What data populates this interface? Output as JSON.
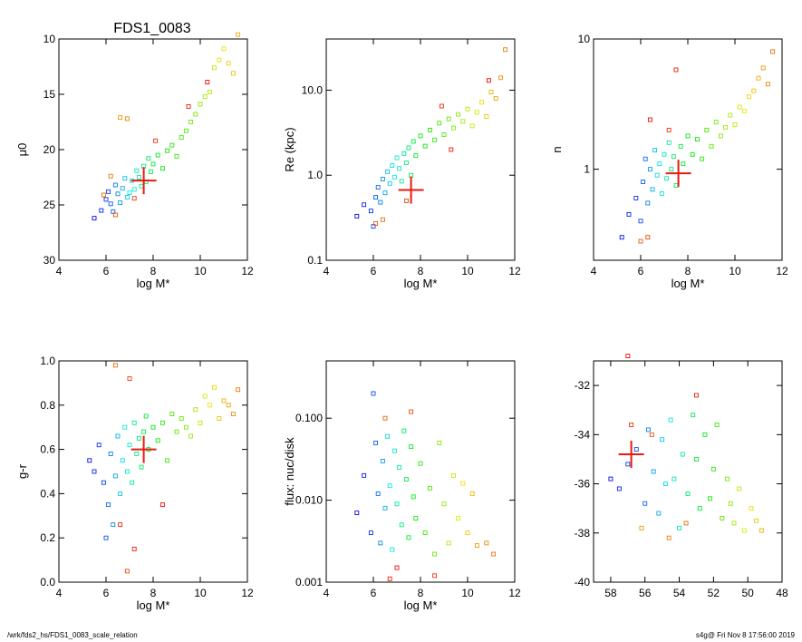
{
  "footer": {
    "left": "/wrk/fds2_hs/FDS1_0083_scale_relation",
    "right": "s4g@  Fri Nov  8 17:56:00 2019"
  },
  "colors": {
    "axis": "#000000",
    "marker_cross": "#e8190f"
  },
  "chart_data": [
    {
      "type": "scatter",
      "title": "FDS1_0083",
      "xlabel": "log M*",
      "ylabel": "μ0",
      "xlim": [
        4,
        12
      ],
      "ylim": [
        30,
        10
      ],
      "xticks": [
        4,
        6,
        8,
        10,
        12
      ],
      "yticks": [
        10,
        15,
        20,
        25,
        30
      ],
      "cross": {
        "x": 7.6,
        "y": 22.8
      },
      "points": [
        [
          5.5,
          26.2
        ],
        [
          5.8,
          25.5
        ],
        [
          6.0,
          24.5
        ],
        [
          6.1,
          23.8
        ],
        [
          6.2,
          24.9
        ],
        [
          6.3,
          25.6
        ],
        [
          6.4,
          23.2
        ],
        [
          6.5,
          24.0
        ],
        [
          6.6,
          24.8
        ],
        [
          6.7,
          23.5
        ],
        [
          6.8,
          22.6
        ],
        [
          6.9,
          24.3
        ],
        [
          7.0,
          23.9
        ],
        [
          7.1,
          22.8
        ],
        [
          7.2,
          23.6
        ],
        [
          7.3,
          21.9
        ],
        [
          7.4,
          22.5
        ],
        [
          7.5,
          23.3
        ],
        [
          7.6,
          21.5
        ],
        [
          7.7,
          22.9
        ],
        [
          7.8,
          20.8
        ],
        [
          7.9,
          22.0
        ],
        [
          8.0,
          21.3
        ],
        [
          8.2,
          20.5
        ],
        [
          8.4,
          21.7
        ],
        [
          8.6,
          20.1
        ],
        [
          8.8,
          19.6
        ],
        [
          9.0,
          20.6
        ],
        [
          9.2,
          18.9
        ],
        [
          9.4,
          18.3
        ],
        [
          9.6,
          17.5
        ],
        [
          9.8,
          16.8
        ],
        [
          10.0,
          15.9
        ],
        [
          10.2,
          15.2
        ],
        [
          10.4,
          14.8
        ],
        [
          10.6,
          12.6
        ],
        [
          10.8,
          11.9
        ],
        [
          11.0,
          10.9
        ],
        [
          11.2,
          12.2
        ],
        [
          11.4,
          13.1
        ],
        [
          11.6,
          9.6
        ],
        [
          6.6,
          17.1
        ],
        [
          6.9,
          17.2
        ],
        [
          6.2,
          22.4
        ],
        [
          5.9,
          24.1
        ],
        [
          6.4,
          25.9
        ],
        [
          7.2,
          24.4
        ],
        [
          8.1,
          19.2
        ],
        [
          9.5,
          16.1
        ],
        [
          10.3,
          13.9
        ]
      ]
    },
    {
      "type": "scatter",
      "xlabel": "log M*",
      "ylabel": "Re (kpc)",
      "scale_y": "log",
      "xlim": [
        4,
        12
      ],
      "ylim": [
        0.1,
        40
      ],
      "xticks": [
        4,
        6,
        8,
        10,
        12
      ],
      "ytick_labels": [
        "0.1",
        "1.0",
        "10.0"
      ],
      "cross": {
        "x": 7.6,
        "y": 0.67
      },
      "points": [
        [
          5.3,
          0.33
        ],
        [
          5.6,
          0.45
        ],
        [
          5.9,
          0.38
        ],
        [
          6.0,
          0.25
        ],
        [
          6.1,
          0.55
        ],
        [
          6.2,
          0.72
        ],
        [
          6.3,
          0.48
        ],
        [
          6.4,
          0.9
        ],
        [
          6.5,
          0.62
        ],
        [
          6.6,
          1.1
        ],
        [
          6.7,
          0.8
        ],
        [
          6.8,
          1.3
        ],
        [
          6.9,
          0.95
        ],
        [
          7.0,
          1.6
        ],
        [
          7.1,
          1.2
        ],
        [
          7.2,
          0.85
        ],
        [
          7.3,
          1.8
        ],
        [
          7.4,
          1.4
        ],
        [
          7.5,
          2.1
        ],
        [
          7.6,
          1.0
        ],
        [
          7.7,
          2.5
        ],
        [
          7.8,
          1.7
        ],
        [
          8.0,
          2.9
        ],
        [
          8.2,
          2.2
        ],
        [
          8.4,
          3.4
        ],
        [
          8.6,
          2.6
        ],
        [
          8.8,
          4.1
        ],
        [
          9.0,
          3.0
        ],
        [
          9.2,
          4.6
        ],
        [
          9.4,
          3.6
        ],
        [
          9.6,
          5.2
        ],
        [
          9.8,
          4.3
        ],
        [
          10.0,
          6.0
        ],
        [
          10.2,
          3.8
        ],
        [
          10.4,
          5.5
        ],
        [
          10.6,
          7.2
        ],
        [
          10.8,
          4.9
        ],
        [
          11.0,
          9.5
        ],
        [
          11.2,
          8.0
        ],
        [
          11.4,
          14.0
        ],
        [
          11.6,
          30.0
        ],
        [
          6.4,
          0.3
        ],
        [
          6.1,
          0.27
        ],
        [
          7.4,
          0.5
        ],
        [
          8.9,
          6.5
        ],
        [
          9.3,
          2.0
        ],
        [
          10.9,
          13.0
        ]
      ]
    },
    {
      "type": "scatter",
      "xlabel": "log M*",
      "ylabel": "n",
      "scale_y": "log",
      "xlim": [
        4,
        12
      ],
      "ylim": [
        0.2,
        10
      ],
      "xticks": [
        4,
        6,
        8,
        10,
        12
      ],
      "ytick_labels": [
        "1",
        "10"
      ],
      "cross": {
        "x": 7.6,
        "y": 0.93
      },
      "points": [
        [
          5.2,
          0.3
        ],
        [
          5.5,
          0.45
        ],
        [
          5.8,
          0.6
        ],
        [
          6.0,
          0.4
        ],
        [
          6.1,
          0.8
        ],
        [
          6.2,
          1.2
        ],
        [
          6.3,
          0.55
        ],
        [
          6.4,
          1.0
        ],
        [
          6.5,
          0.7
        ],
        [
          6.6,
          1.4
        ],
        [
          6.7,
          0.9
        ],
        [
          6.8,
          1.1
        ],
        [
          6.9,
          0.65
        ],
        [
          7.0,
          1.3
        ],
        [
          7.1,
          0.85
        ],
        [
          7.2,
          1.6
        ],
        [
          7.3,
          1.0
        ],
        [
          7.4,
          1.25
        ],
        [
          7.5,
          0.75
        ],
        [
          7.7,
          1.5
        ],
        [
          7.8,
          1.1
        ],
        [
          8.0,
          1.8
        ],
        [
          8.2,
          1.3
        ],
        [
          8.4,
          1.7
        ],
        [
          8.6,
          1.2
        ],
        [
          8.8,
          2.0
        ],
        [
          9.0,
          1.5
        ],
        [
          9.2,
          2.3
        ],
        [
          9.4,
          1.8
        ],
        [
          9.6,
          2.1
        ],
        [
          9.8,
          2.6
        ],
        [
          10.0,
          2.2
        ],
        [
          10.2,
          3.0
        ],
        [
          10.4,
          2.8
        ],
        [
          10.6,
          3.6
        ],
        [
          10.8,
          4.0
        ],
        [
          11.0,
          5.0
        ],
        [
          11.2,
          6.0
        ],
        [
          11.4,
          4.5
        ],
        [
          11.6,
          8.0
        ],
        [
          6.0,
          0.28
        ],
        [
          6.3,
          0.3
        ],
        [
          7.2,
          2.0
        ],
        [
          7.5,
          5.8
        ],
        [
          6.4,
          2.4
        ]
      ]
    },
    {
      "type": "scatter",
      "xlabel": "log M*",
      "ylabel": "g-r",
      "xlim": [
        4,
        12
      ],
      "ylim": [
        0.0,
        1.0
      ],
      "xticks": [
        4,
        6,
        8,
        10,
        12
      ],
      "yticks": [
        0.0,
        0.2,
        0.4,
        0.6,
        0.8,
        1.0
      ],
      "ytick_labels": [
        "0.0",
        "0.2",
        "0.4",
        "0.6",
        "0.8",
        "1.0"
      ],
      "cross": {
        "x": 7.6,
        "y": 0.6
      },
      "points": [
        [
          5.3,
          0.55
        ],
        [
          5.5,
          0.5
        ],
        [
          5.7,
          0.62
        ],
        [
          5.9,
          0.45
        ],
        [
          6.0,
          0.2
        ],
        [
          6.1,
          0.35
        ],
        [
          6.2,
          0.58
        ],
        [
          6.3,
          0.26
        ],
        [
          6.4,
          0.48
        ],
        [
          6.5,
          0.66
        ],
        [
          6.6,
          0.4
        ],
        [
          6.7,
          0.55
        ],
        [
          6.8,
          0.7
        ],
        [
          6.9,
          0.5
        ],
        [
          7.0,
          0.62
        ],
        [
          7.1,
          0.45
        ],
        [
          7.2,
          0.72
        ],
        [
          7.3,
          0.58
        ],
        [
          7.4,
          0.65
        ],
        [
          7.5,
          0.52
        ],
        [
          7.6,
          0.68
        ],
        [
          7.7,
          0.75
        ],
        [
          7.8,
          0.6
        ],
        [
          8.0,
          0.7
        ],
        [
          8.2,
          0.64
        ],
        [
          8.4,
          0.72
        ],
        [
          8.6,
          0.55
        ],
        [
          8.8,
          0.76
        ],
        [
          9.0,
          0.68
        ],
        [
          9.2,
          0.74
        ],
        [
          9.4,
          0.7
        ],
        [
          9.6,
          0.66
        ],
        [
          9.8,
          0.78
        ],
        [
          10.0,
          0.72
        ],
        [
          10.2,
          0.84
        ],
        [
          10.4,
          0.8
        ],
        [
          10.6,
          0.88
        ],
        [
          10.8,
          0.74
        ],
        [
          11.0,
          0.82
        ],
        [
          11.2,
          0.8
        ],
        [
          11.4,
          0.76
        ],
        [
          11.6,
          0.87
        ],
        [
          6.4,
          0.98
        ],
        [
          6.9,
          0.05
        ],
        [
          7.0,
          0.92
        ],
        [
          6.6,
          0.26
        ],
        [
          7.2,
          0.15
        ],
        [
          8.4,
          0.35
        ]
      ]
    },
    {
      "type": "scatter",
      "xlabel": "log M*",
      "ylabel": "flux: nuc/disk",
      "scale_y": "log",
      "xlim": [
        4,
        12
      ],
      "ylim": [
        0.001,
        0.5
      ],
      "xticks": [
        4,
        6,
        8,
        10,
        12
      ],
      "ytick_labels": [
        "0.001",
        "0.010",
        "0.100"
      ],
      "points": [
        [
          5.3,
          0.007
        ],
        [
          5.6,
          0.02
        ],
        [
          5.9,
          0.004
        ],
        [
          6.0,
          0.2
        ],
        [
          6.1,
          0.05
        ],
        [
          6.2,
          0.012
        ],
        [
          6.3,
          0.003
        ],
        [
          6.4,
          0.03
        ],
        [
          6.5,
          0.008
        ],
        [
          6.6,
          0.06
        ],
        [
          6.7,
          0.015
        ],
        [
          6.8,
          0.0025
        ],
        [
          6.9,
          0.04
        ],
        [
          7.0,
          0.009
        ],
        [
          7.1,
          0.025
        ],
        [
          7.2,
          0.005
        ],
        [
          7.3,
          0.07
        ],
        [
          7.4,
          0.018
        ],
        [
          7.5,
          0.0035
        ],
        [
          7.6,
          0.045
        ],
        [
          7.7,
          0.011
        ],
        [
          7.8,
          0.006
        ],
        [
          8.0,
          0.028
        ],
        [
          8.2,
          0.004
        ],
        [
          8.4,
          0.014
        ],
        [
          8.6,
          0.0022
        ],
        [
          8.8,
          0.05
        ],
        [
          9.0,
          0.009
        ],
        [
          9.2,
          0.003
        ],
        [
          9.4,
          0.02
        ],
        [
          9.6,
          0.006
        ],
        [
          9.8,
          0.016
        ],
        [
          10.0,
          0.004
        ],
        [
          10.2,
          0.012
        ],
        [
          10.4,
          0.0028
        ],
        [
          10.8,
          0.003
        ],
        [
          11.1,
          0.0022
        ],
        [
          6.5,
          0.1
        ],
        [
          7.6,
          0.12
        ],
        [
          8.6,
          0.0012
        ],
        [
          6.7,
          0.0011
        ],
        [
          7.0,
          0.0015
        ]
      ]
    },
    {
      "type": "scatter",
      "xlabel": "",
      "ylabel": "",
      "xlim": [
        59,
        48
      ],
      "ylim": [
        -40,
        -31
      ],
      "xticks": [
        58,
        56,
        54,
        52,
        50,
        48
      ],
      "yticks": [
        -40,
        -38,
        -36,
        -34,
        -32
      ],
      "cross": {
        "x": 56.8,
        "y": -34.8
      },
      "points": [
        [
          58.0,
          -35.8
        ],
        [
          57.5,
          -36.2
        ],
        [
          57.0,
          -35.2
        ],
        [
          56.5,
          -34.6
        ],
        [
          56.0,
          -36.8
        ],
        [
          55.8,
          -33.8
        ],
        [
          55.5,
          -35.5
        ],
        [
          55.2,
          -37.2
        ],
        [
          55.0,
          -34.2
        ],
        [
          54.8,
          -36.0
        ],
        [
          54.5,
          -33.4
        ],
        [
          54.3,
          -35.8
        ],
        [
          54.0,
          -37.8
        ],
        [
          53.8,
          -34.8
        ],
        [
          53.5,
          -36.4
        ],
        [
          53.2,
          -33.2
        ],
        [
          53.0,
          -35.0
        ],
        [
          52.8,
          -37.0
        ],
        [
          52.5,
          -34.0
        ],
        [
          52.2,
          -36.6
        ],
        [
          52.0,
          -35.4
        ],
        [
          51.8,
          -33.6
        ],
        [
          51.5,
          -37.4
        ],
        [
          51.2,
          -35.8
        ],
        [
          51.0,
          -36.8
        ],
        [
          50.8,
          -37.6
        ],
        [
          50.5,
          -36.2
        ],
        [
          50.2,
          -37.9
        ],
        [
          49.8,
          -37.0
        ],
        [
          49.5,
          -37.5
        ],
        [
          49.2,
          -37.9
        ],
        [
          56.2,
          -37.8
        ],
        [
          54.6,
          -38.2
        ],
        [
          53.6,
          -37.6
        ],
        [
          55.6,
          -34.0
        ],
        [
          56.8,
          -33.6
        ],
        [
          53.0,
          -32.4
        ],
        [
          57.0,
          -30.8
        ]
      ]
    }
  ]
}
